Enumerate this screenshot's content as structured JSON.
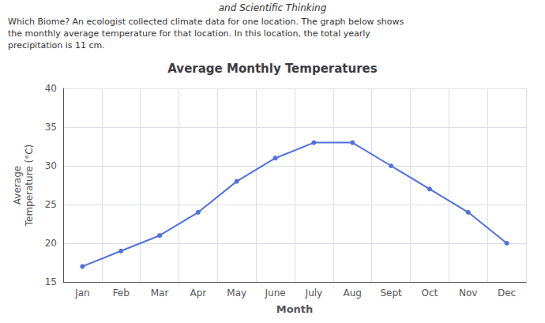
{
  "chart_data": {
    "type": "line",
    "title": "Average Monthly Temperatures",
    "xlabel": "Month",
    "ylabel": "Average\nTemperature (°C)",
    "annotations": [
      "and Scientific Thinking",
      "Which Biome? An ecologist collected climate data for one location. The graph below shows",
      "the monthly average temperature for that location. In this location, the total yearly",
      "precipitation is 11 cm."
    ],
    "categories": [
      "Jan",
      "Feb",
      "Mar",
      "Apr",
      "May",
      "June",
      "July",
      "Aug",
      "Sept",
      "Oct",
      "Nov",
      "Dec"
    ],
    "values": [
      17,
      19,
      21,
      24,
      28,
      31,
      33,
      33,
      30,
      27,
      24,
      20
    ],
    "ylim": [
      15,
      40
    ],
    "yticks": [
      15,
      20,
      25,
      30,
      35,
      40
    ],
    "grid": true,
    "marker": "circle"
  }
}
